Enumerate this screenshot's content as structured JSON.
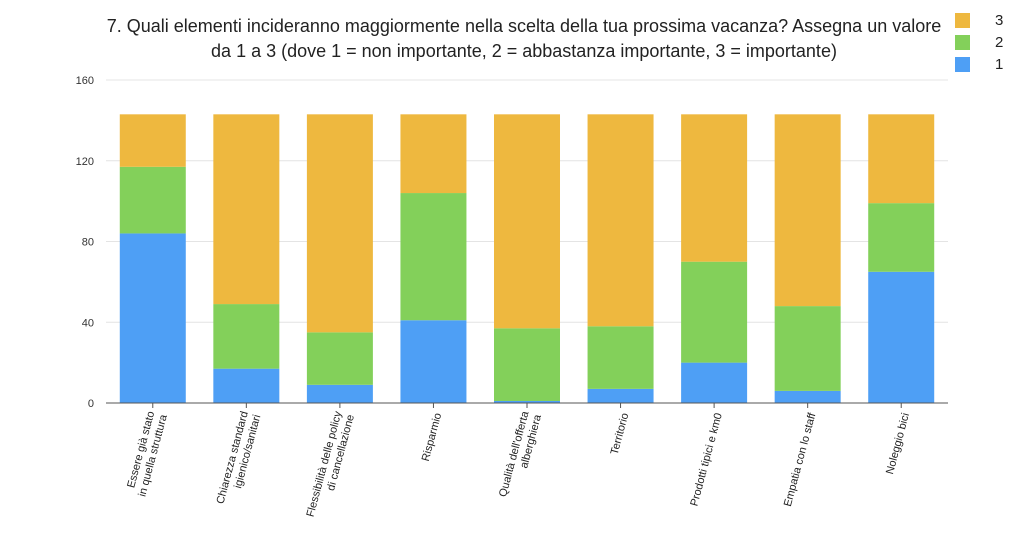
{
  "chart_data": {
    "type": "bar",
    "stacked": true,
    "title": "7. Quali elementi incideranno maggiormente nella scelta della tua prossima vacanza? Assegna un valore da 1 a 3 (dove 1 = non importante, 2 = abbastanza importante, 3 = importante)",
    "xlabel": "",
    "ylabel": "",
    "ylim": [
      0,
      160
    ],
    "yticks": [
      0,
      40,
      80,
      120,
      160
    ],
    "grid": true,
    "legend_position": "top-right",
    "categories": [
      [
        "Essere già stato",
        "in quella struttura"
      ],
      [
        "Chiarezza standard",
        "igienico/sanitari"
      ],
      [
        "Flessibilità delle policy",
        "di cancellazione"
      ],
      [
        "Risparmio"
      ],
      [
        "Qualità dell'offerta",
        "alberghiera"
      ],
      [
        "Territorio"
      ],
      [
        "Prodotti tipici e km0"
      ],
      [
        "Empatia con lo staff"
      ],
      [
        "Noleggio bici"
      ]
    ],
    "series": [
      {
        "name": "1",
        "color": "#4e9ff5",
        "values": [
          84,
          17,
          9,
          41,
          1,
          7,
          20,
          6,
          65
        ]
      },
      {
        "name": "2",
        "color": "#83d05a",
        "values": [
          33,
          32,
          26,
          63,
          36,
          31,
          50,
          42,
          34
        ]
      },
      {
        "name": "3",
        "color": "#eeb83f",
        "values": [
          26,
          94,
          108,
          39,
          106,
          105,
          73,
          95,
          44
        ]
      }
    ],
    "legend": [
      {
        "label": "3",
        "color": "#eeb83f"
      },
      {
        "label": "2",
        "color": "#83d05a"
      },
      {
        "label": "1",
        "color": "#4e9ff5"
      }
    ]
  }
}
